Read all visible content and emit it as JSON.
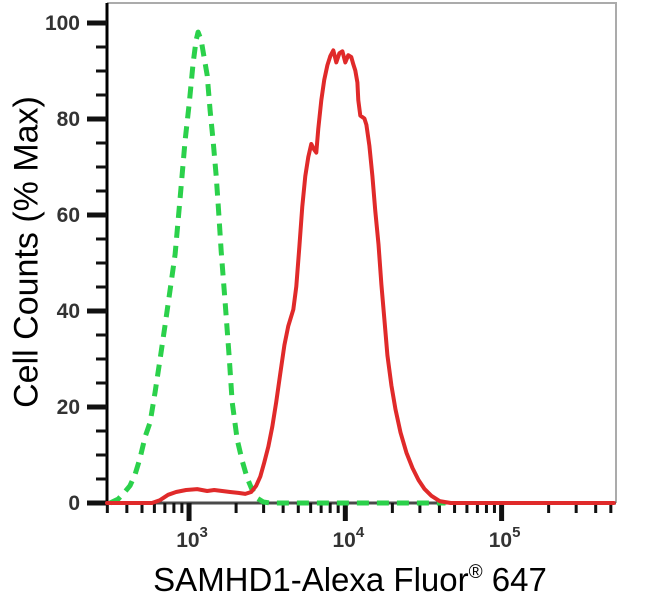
{
  "chart_data": {
    "type": "line",
    "subtype": "flow-cytometry-histogram",
    "title": "",
    "xlabel": "SAMHD1-Alexa Fluor® 647",
    "xlabel_parts": {
      "prefix": "SAMHD1-Alexa Fluor",
      "sup": "®",
      "suffix": " 647"
    },
    "ylabel": "Cell Counts (% Max)",
    "x_scale": "log10",
    "x_log10_range": [
      2.475,
      5.732
    ],
    "x_decade_exponents": [
      3,
      4,
      5
    ],
    "x_tick_label_base": "10",
    "y_ticks": [
      0,
      20,
      40,
      60,
      80,
      100
    ],
    "y_minor_step": 5,
    "ylim": [
      0,
      100
    ],
    "grid": false,
    "legend": "none",
    "colors": {
      "axis": "#111111",
      "axis_left": "#000000",
      "axis_bottom": "#4a4a4a",
      "border": "#ababab",
      "tick_text": "#333333"
    },
    "series": [
      {
        "name": "green-dashed",
        "color": "#2bd14b",
        "line_style": "dashed",
        "points": [
          [
            2.494,
            0
          ],
          [
            2.546,
            0.8
          ],
          [
            2.584,
            2.1
          ],
          [
            2.622,
            3.6
          ],
          [
            2.654,
            5.9
          ],
          [
            2.687,
            9.4
          ],
          [
            2.719,
            13.8
          ],
          [
            2.751,
            16.8
          ],
          [
            2.783,
            23.1
          ],
          [
            2.815,
            30.0
          ],
          [
            2.847,
            37.1
          ],
          [
            2.879,
            44.4
          ],
          [
            2.911,
            51.8
          ],
          [
            2.943,
            63.5
          ],
          [
            2.975,
            75.5
          ],
          [
            3.001,
            83.2
          ],
          [
            3.026,
            91.6
          ],
          [
            3.045,
            96.4
          ],
          [
            3.058,
            98.1
          ],
          [
            3.078,
            96.4
          ],
          [
            3.097,
            92.7
          ],
          [
            3.116,
            89.1
          ],
          [
            3.135,
            81.8
          ],
          [
            3.154,
            75.5
          ],
          [
            3.174,
            68.1
          ],
          [
            3.187,
            61.8
          ],
          [
            3.206,
            52.4
          ],
          [
            3.231,
            41.9
          ],
          [
            3.257,
            30.4
          ],
          [
            3.276,
            21.0
          ],
          [
            3.308,
            13.2
          ],
          [
            3.34,
            8.8
          ],
          [
            3.372,
            5.2
          ],
          [
            3.404,
            2.7
          ],
          [
            3.436,
            1.0
          ],
          [
            3.475,
            0.2
          ],
          [
            3.519,
            0
          ],
          [
            3.712,
            0
          ],
          [
            4.096,
            0
          ],
          [
            4.641,
            0
          ]
        ]
      },
      {
        "name": "red-solid",
        "color": "#e02a2a",
        "line_style": "solid",
        "points": [
          [
            2.475,
            0
          ],
          [
            2.687,
            0
          ],
          [
            2.763,
            0
          ],
          [
            2.815,
            0.6
          ],
          [
            2.866,
            1.7
          ],
          [
            2.917,
            2.3
          ],
          [
            2.981,
            2.7
          ],
          [
            3.052,
            2.9
          ],
          [
            3.116,
            2.5
          ],
          [
            3.161,
            2.7
          ],
          [
            3.212,
            2.5
          ],
          [
            3.263,
            2.3
          ],
          [
            3.315,
            2.1
          ],
          [
            3.36,
            1.9
          ],
          [
            3.398,
            2.3
          ],
          [
            3.43,
            3.6
          ],
          [
            3.456,
            5.5
          ],
          [
            3.481,
            8.4
          ],
          [
            3.507,
            11.7
          ],
          [
            3.533,
            15.9
          ],
          [
            3.558,
            21.0
          ],
          [
            3.584,
            27.0
          ],
          [
            3.61,
            32.9
          ],
          [
            3.635,
            36.9
          ],
          [
            3.667,
            40.3
          ],
          [
            3.686,
            45.1
          ],
          [
            3.706,
            53.5
          ],
          [
            3.725,
            61.8
          ],
          [
            3.744,
            68.1
          ],
          [
            3.763,
            72.1
          ],
          [
            3.782,
            74.8
          ],
          [
            3.801,
            73.6
          ],
          [
            3.814,
            73.0
          ],
          [
            3.827,
            78.0
          ],
          [
            3.846,
            83.9
          ],
          [
            3.865,
            88.1
          ],
          [
            3.885,
            91.2
          ],
          [
            3.904,
            93.1
          ],
          [
            3.923,
            94.3
          ],
          [
            3.942,
            91.8
          ],
          [
            3.962,
            93.7
          ],
          [
            3.981,
            94.1
          ],
          [
            4.0,
            91.8
          ],
          [
            4.019,
            93.3
          ],
          [
            4.038,
            92.9
          ],
          [
            4.051,
            91.4
          ],
          [
            4.064,
            90.1
          ],
          [
            4.077,
            87.6
          ],
          [
            4.083,
            83.9
          ],
          [
            4.096,
            80.7
          ],
          [
            4.122,
            80.1
          ],
          [
            4.135,
            78.8
          ],
          [
            4.154,
            74.4
          ],
          [
            4.173,
            68.1
          ],
          [
            4.192,
            60.8
          ],
          [
            4.212,
            53.9
          ],
          [
            4.231,
            45.5
          ],
          [
            4.25,
            38.2
          ],
          [
            4.269,
            30.8
          ],
          [
            4.295,
            24.5
          ],
          [
            4.321,
            19.5
          ],
          [
            4.353,
            14.7
          ],
          [
            4.391,
            10.5
          ],
          [
            4.43,
            7.3
          ],
          [
            4.468,
            4.8
          ],
          [
            4.507,
            2.9
          ],
          [
            4.551,
            1.5
          ],
          [
            4.603,
            0.4
          ],
          [
            4.674,
            0
          ],
          [
            4.802,
            0
          ],
          [
            5.122,
            0
          ],
          [
            5.442,
            0
          ],
          [
            5.718,
            0
          ]
        ]
      }
    ]
  }
}
